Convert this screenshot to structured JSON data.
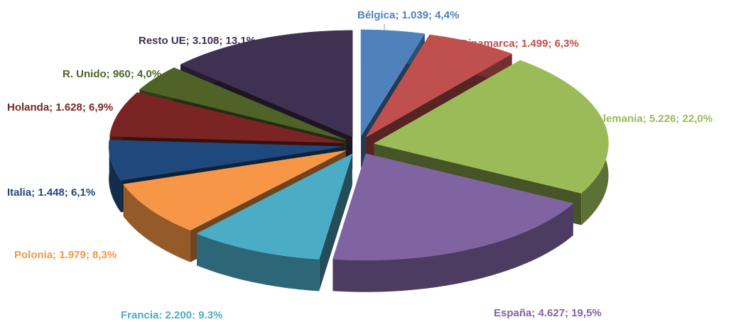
{
  "chart_data": {
    "type": "pie",
    "values": [
      1039,
      1499,
      5226,
      4627,
      2200,
      1979,
      1448,
      1628,
      960,
      3108
    ],
    "value_labels": [
      "Bélgica; 1.039; 4,4%",
      "Dinamarca;  1.499; 6,3%",
      "Alemania; 5.226; 22,0%",
      "España;  4.627; 19,5%",
      "Francia: 2.200: 9.3%",
      "Polonia;  1.979; 8,3%",
      "Italia; 1.448; 6,1%",
      "Holanda;  1.628; 6,9%",
      "R. Unido; 960; 4,0%",
      "Resto UE; 3.108; 13,1%"
    ],
    "colors": [
      "#4f81bd",
      "#c0504d",
      "#9bbb59",
      "#8064a2",
      "#4bacc6",
      "#f79646",
      "#1f497d",
      "#7b2424",
      "#4f6228",
      "#3f3151"
    ]
  }
}
